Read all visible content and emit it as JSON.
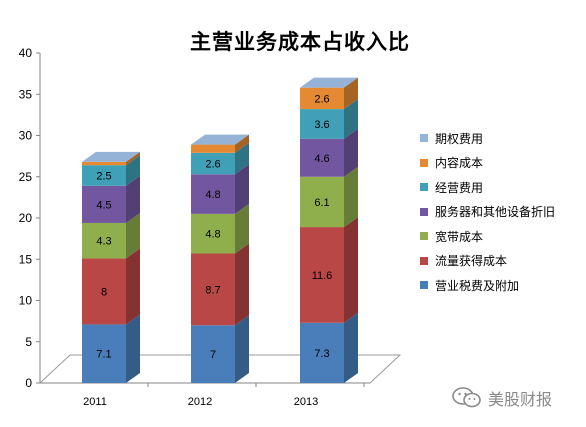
{
  "chart_data": {
    "type": "bar",
    "stacked": true,
    "three_d": true,
    "title": "主营业务成本占收入比",
    "categories": [
      "2011",
      "2012",
      "2013"
    ],
    "ylim": [
      0,
      40
    ],
    "yticks": [
      "0",
      "5",
      "10",
      "15",
      "20",
      "25",
      "30",
      "35",
      "40"
    ],
    "grid": false,
    "legend_position": "right",
    "series": [
      {
        "name": "营业税费及附加",
        "values": [
          7.1,
          7,
          7.3
        ],
        "labels": [
          "7.1",
          "7",
          "7.3"
        ],
        "color": "#4a7ebb"
      },
      {
        "name": "流量获得成本",
        "values": [
          8,
          8.7,
          11.6
        ],
        "labels": [
          "8",
          "8.7",
          "11.6"
        ],
        "color": "#b94745"
      },
      {
        "name": "宽带成本",
        "values": [
          4.3,
          4.8,
          6.1
        ],
        "labels": [
          "4.3",
          "4.8",
          "6.1"
        ],
        "color": "#8fae4c"
      },
      {
        "name": "服务器和其他设备折旧",
        "values": [
          4.5,
          4.8,
          4.6
        ],
        "labels": [
          "4.5",
          "4.8",
          "4.6"
        ],
        "color": "#7257a0"
      },
      {
        "name": "经营费用",
        "values": [
          2.5,
          2.6,
          3.6
        ],
        "labels": [
          "2.5",
          "2.6",
          "3.6"
        ],
        "color": "#3fa0b8"
      },
      {
        "name": "内容成本",
        "values": [
          0.4,
          1,
          2.6
        ],
        "labels": [
          "0.4",
          "1",
          "2.6"
        ],
        "color": "#e58a32"
      },
      {
        "name": "期权费用",
        "values": [
          0,
          0,
          0
        ],
        "labels": [
          "",
          "",
          ""
        ],
        "color": "#95b3d7"
      }
    ]
  },
  "legend_order": [
    6,
    5,
    4,
    3,
    2,
    1,
    0
  ],
  "watermark": {
    "text": "美股财报",
    "icon": "wechat-icon"
  }
}
